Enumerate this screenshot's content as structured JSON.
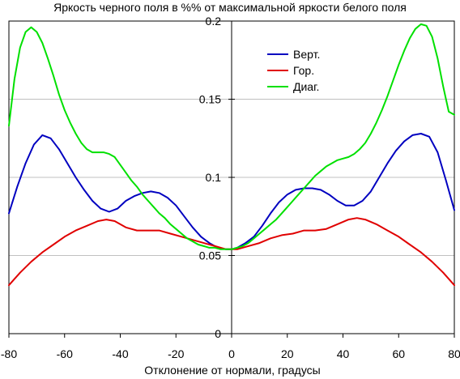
{
  "chart_data": {
    "type": "line",
    "title": "Яркость черного поля в %% от максимальной яркости белого поля",
    "xlabel": "Отклонение от нормали, градусы",
    "ylabel": "",
    "xlim": [
      -80,
      80
    ],
    "ylim": [
      0,
      0.2
    ],
    "x_ticks": [
      "-80",
      "-60",
      "-40",
      "-20",
      "0",
      "20",
      "40",
      "60",
      "80"
    ],
    "y_ticks": [
      "0",
      "0.05",
      "0.1",
      "0.15",
      "0.2"
    ],
    "grid": "horizontal",
    "legend_position": "top-right",
    "series": [
      {
        "name": "Верт.",
        "color": "#0000c0",
        "x": [
          -80,
          -77,
          -74,
          -71,
          -68,
          -65,
          -62,
          -59,
          -56,
          -53,
          -50,
          -47,
          -44,
          -41,
          -38,
          -35,
          -32,
          -29,
          -26,
          -23,
          -20,
          -17,
          -14,
          -11,
          -8,
          -5,
          -2,
          0,
          2,
          5,
          8,
          11,
          14,
          17,
          20,
          23,
          26,
          29,
          32,
          35,
          38,
          41,
          44,
          47,
          50,
          53,
          56,
          59,
          62,
          65,
          68,
          71,
          74,
          77,
          80
        ],
        "y": [
          0.077,
          0.094,
          0.109,
          0.121,
          0.127,
          0.125,
          0.118,
          0.109,
          0.1,
          0.092,
          0.085,
          0.08,
          0.078,
          0.08,
          0.085,
          0.088,
          0.09,
          0.091,
          0.09,
          0.087,
          0.082,
          0.075,
          0.068,
          0.062,
          0.058,
          0.055,
          0.054,
          0.054,
          0.055,
          0.058,
          0.062,
          0.069,
          0.077,
          0.084,
          0.089,
          0.092,
          0.093,
          0.093,
          0.092,
          0.089,
          0.085,
          0.082,
          0.082,
          0.085,
          0.091,
          0.1,
          0.109,
          0.117,
          0.123,
          0.127,
          0.128,
          0.126,
          0.116,
          0.098,
          0.079
        ]
      },
      {
        "name": "Гор.",
        "color": "#e00000",
        "x": [
          -80,
          -76,
          -72,
          -68,
          -64,
          -60,
          -56,
          -52,
          -48,
          -45,
          -42,
          -38,
          -34,
          -30,
          -26,
          -22,
          -18,
          -14,
          -10,
          -6,
          -2,
          0,
          2,
          6,
          10,
          14,
          18,
          22,
          26,
          30,
          34,
          38,
          42,
          45,
          48,
          52,
          56,
          60,
          64,
          68,
          72,
          76,
          80
        ],
        "y": [
          0.031,
          0.039,
          0.046,
          0.052,
          0.057,
          0.062,
          0.066,
          0.069,
          0.072,
          0.073,
          0.072,
          0.068,
          0.066,
          0.066,
          0.066,
          0.064,
          0.062,
          0.06,
          0.058,
          0.056,
          0.054,
          0.054,
          0.054,
          0.056,
          0.058,
          0.061,
          0.063,
          0.064,
          0.066,
          0.066,
          0.067,
          0.07,
          0.073,
          0.074,
          0.073,
          0.07,
          0.066,
          0.062,
          0.057,
          0.052,
          0.046,
          0.039,
          0.031
        ]
      },
      {
        "name": "Диаг.",
        "color": "#00e000",
        "x": [
          -80,
          -78,
          -76,
          -74,
          -72,
          -70,
          -68,
          -66,
          -64,
          -62,
          -60,
          -58,
          -56,
          -54,
          -52,
          -50,
          -48,
          -46,
          -44,
          -42,
          -40,
          -38,
          -36,
          -34,
          -32,
          -30,
          -28,
          -26,
          -24,
          -22,
          -20,
          -18,
          -16,
          -14,
          -12,
          -10,
          -8,
          -6,
          -4,
          -2,
          0,
          2,
          4,
          6,
          8,
          10,
          12,
          14,
          16,
          18,
          20,
          22,
          24,
          26,
          28,
          30,
          32,
          34,
          36,
          38,
          40,
          42,
          44,
          46,
          48,
          50,
          52,
          54,
          56,
          58,
          60,
          62,
          64,
          66,
          68,
          70,
          72,
          74,
          76,
          78,
          80
        ],
        "y": [
          0.133,
          0.163,
          0.183,
          0.193,
          0.196,
          0.193,
          0.186,
          0.176,
          0.165,
          0.153,
          0.143,
          0.135,
          0.128,
          0.122,
          0.118,
          0.116,
          0.116,
          0.116,
          0.115,
          0.113,
          0.108,
          0.103,
          0.098,
          0.094,
          0.089,
          0.085,
          0.081,
          0.077,
          0.074,
          0.07,
          0.067,
          0.064,
          0.061,
          0.059,
          0.057,
          0.056,
          0.055,
          0.055,
          0.054,
          0.054,
          0.054,
          0.055,
          0.056,
          0.058,
          0.061,
          0.064,
          0.067,
          0.07,
          0.073,
          0.077,
          0.081,
          0.085,
          0.089,
          0.093,
          0.097,
          0.101,
          0.104,
          0.107,
          0.109,
          0.111,
          0.112,
          0.113,
          0.115,
          0.118,
          0.122,
          0.128,
          0.135,
          0.143,
          0.152,
          0.162,
          0.172,
          0.181,
          0.189,
          0.195,
          0.198,
          0.197,
          0.19,
          0.176,
          0.158,
          0.142,
          0.14
        ]
      }
    ]
  }
}
